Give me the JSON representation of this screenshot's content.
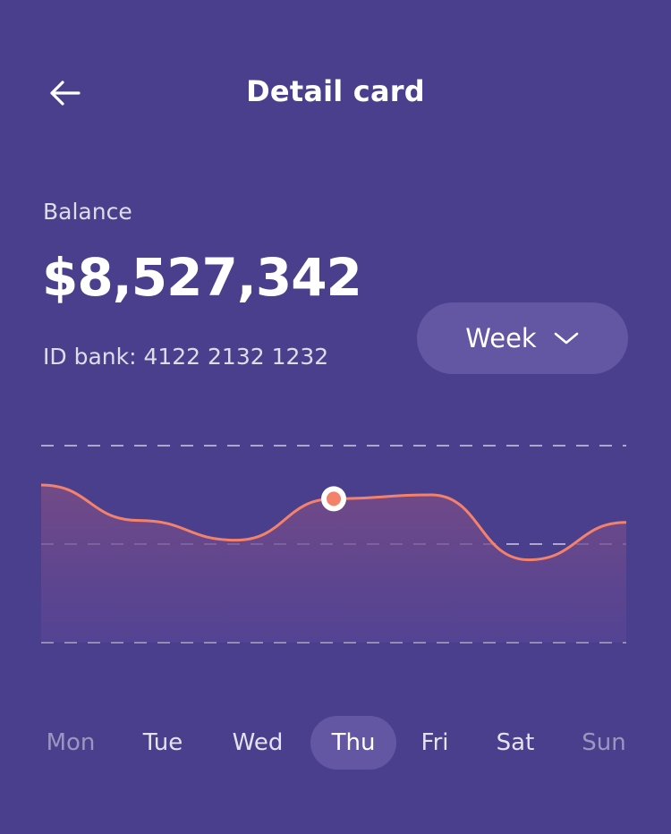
{
  "header": {
    "title": "Detail card",
    "back_icon": "arrow-left-icon"
  },
  "balance": {
    "label": "Balance",
    "amount": "$8,527,342",
    "bank_id": "ID bank: 4122 2132 1232"
  },
  "period_select": {
    "value": "Week",
    "icon": "chevron-down-icon"
  },
  "colors": {
    "background": "#4a3f8c",
    "line": "#f4826b",
    "pill": "#6356a3",
    "marker": "#f4826b"
  },
  "days": [
    {
      "label": "Mon",
      "state": "faded"
    },
    {
      "label": "Tue",
      "state": "normal"
    },
    {
      "label": "Wed",
      "state": "normal"
    },
    {
      "label": "Thu",
      "state": "active"
    },
    {
      "label": "Fri",
      "state": "normal"
    },
    {
      "label": "Sat",
      "state": "normal"
    },
    {
      "label": "Sun",
      "state": "faded"
    }
  ],
  "chart_data": {
    "type": "area",
    "x": [
      "Mon",
      "Tue",
      "Wed",
      "Thu",
      "Fri",
      "Sat",
      "Sun"
    ],
    "values": [
      8.0,
      6.2,
      5.2,
      7.3,
      7.5,
      4.2,
      6.1
    ],
    "ylim": [
      0,
      10
    ],
    "highlight": "Thu",
    "grid": true,
    "xlabel": "",
    "ylabel": ""
  }
}
